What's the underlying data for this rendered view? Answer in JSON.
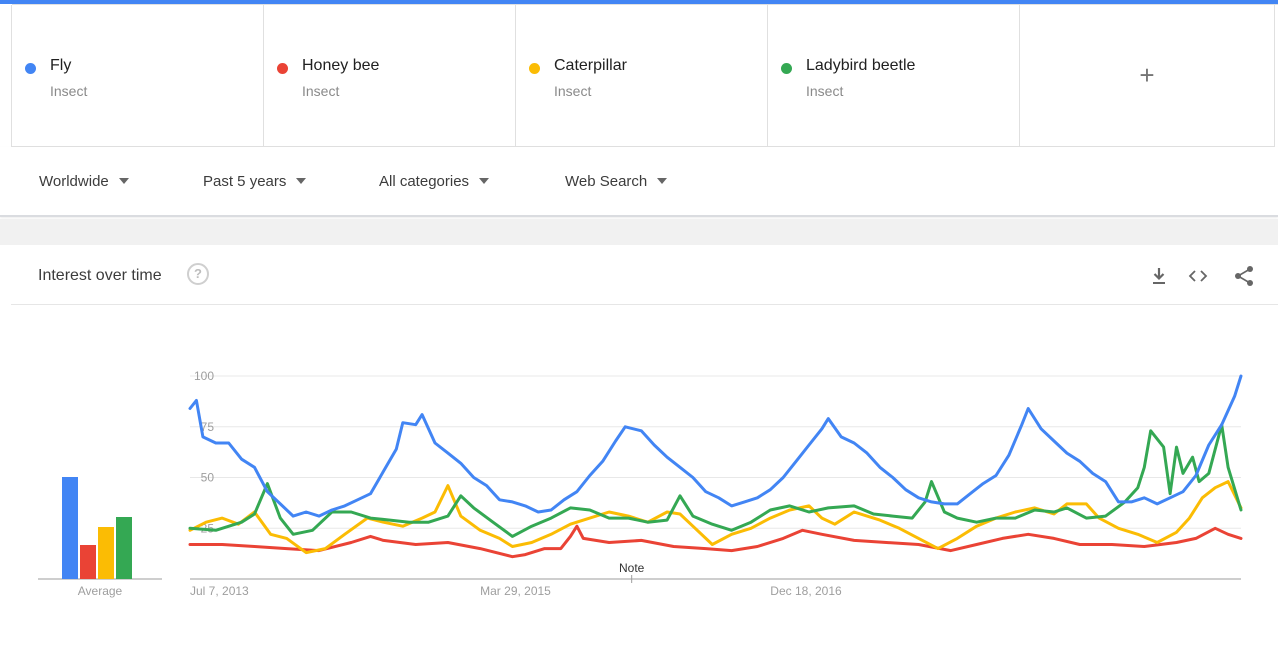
{
  "colors": {
    "accent": "#4285f4"
  },
  "terms": [
    {
      "name": "Fly",
      "type": "Insect",
      "color": "#4285f4"
    },
    {
      "name": "Honey bee",
      "type": "Insect",
      "color": "#ea4335"
    },
    {
      "name": "Caterpillar",
      "type": "Insect",
      "color": "#fbbc04"
    },
    {
      "name": "Ladybird beetle",
      "type": "Insect",
      "color": "#34a853"
    }
  ],
  "add_term_icon": "plus-icon",
  "filters": {
    "region": "Worldwide",
    "time": "Past 5 years",
    "category": "All categories",
    "search_type": "Web Search"
  },
  "panel": {
    "title": "Interest over time",
    "help_icon": "help-circle-icon",
    "help_glyph": "?",
    "tools": [
      "download-icon",
      "embed-code-icon",
      "share-icon"
    ]
  },
  "chart_data": {
    "type": "line",
    "yticks": [
      25,
      50,
      75,
      100
    ],
    "ylim": [
      0,
      100
    ],
    "x_tick_labels": [
      "Jul 7, 2013",
      "Mar 29, 2015",
      "Dec 18, 2016"
    ],
    "x_tick_index": [
      0,
      90,
      180
    ],
    "note": {
      "label": "Note",
      "x_index": 137
    },
    "average_label": "Average",
    "averages": [
      {
        "name": "Fly",
        "value": 51
      },
      {
        "name": "Honey bee",
        "value": 17
      },
      {
        "name": "Caterpillar",
        "value": 26
      },
      {
        "name": "Ladybird beetle",
        "value": 31
      }
    ],
    "series_keypoints": [
      {
        "name": "Fly",
        "points": [
          [
            0,
            84
          ],
          [
            2,
            88
          ],
          [
            4,
            70
          ],
          [
            8,
            67
          ],
          [
            12,
            67
          ],
          [
            16,
            59
          ],
          [
            20,
            55
          ],
          [
            24,
            43
          ],
          [
            28,
            37
          ],
          [
            32,
            31
          ],
          [
            36,
            33
          ],
          [
            40,
            31
          ],
          [
            44,
            34
          ],
          [
            48,
            36
          ],
          [
            52,
            39
          ],
          [
            56,
            42
          ],
          [
            60,
            53
          ],
          [
            64,
            64
          ],
          [
            66,
            77
          ],
          [
            70,
            76
          ],
          [
            72,
            81
          ],
          [
            76,
            67
          ],
          [
            80,
            62
          ],
          [
            84,
            57
          ],
          [
            88,
            50
          ],
          [
            92,
            46
          ],
          [
            96,
            39
          ],
          [
            100,
            38
          ],
          [
            104,
            36
          ],
          [
            108,
            33
          ],
          [
            112,
            34
          ],
          [
            116,
            39
          ],
          [
            120,
            43
          ],
          [
            124,
            51
          ],
          [
            128,
            58
          ],
          [
            132,
            68
          ],
          [
            135,
            75
          ],
          [
            140,
            73
          ],
          [
            144,
            66
          ],
          [
            148,
            60
          ],
          [
            152,
            55
          ],
          [
            156,
            50
          ],
          [
            160,
            43
          ],
          [
            164,
            40
          ],
          [
            168,
            36
          ],
          [
            172,
            38
          ],
          [
            176,
            40
          ],
          [
            180,
            44
          ],
          [
            184,
            50
          ],
          [
            188,
            58
          ],
          [
            192,
            66
          ],
          [
            196,
            74
          ],
          [
            198,
            79
          ],
          [
            202,
            70
          ],
          [
            206,
            67
          ],
          [
            210,
            62
          ],
          [
            214,
            55
          ],
          [
            218,
            50
          ],
          [
            222,
            44
          ],
          [
            226,
            40
          ],
          [
            230,
            38
          ],
          [
            234,
            37
          ],
          [
            238,
            37
          ],
          [
            242,
            42
          ],
          [
            246,
            47
          ],
          [
            250,
            51
          ],
          [
            254,
            61
          ],
          [
            258,
            76
          ],
          [
            260,
            84
          ],
          [
            264,
            74
          ],
          [
            268,
            68
          ],
          [
            272,
            62
          ],
          [
            276,
            58
          ],
          [
            280,
            52
          ],
          [
            284,
            48
          ],
          [
            288,
            38
          ],
          [
            292,
            38
          ],
          [
            296,
            40
          ],
          [
            300,
            37
          ],
          [
            304,
            40
          ],
          [
            308,
            43
          ],
          [
            312,
            51
          ],
          [
            316,
            66
          ],
          [
            320,
            76
          ],
          [
            324,
            90
          ],
          [
            326,
            100
          ]
        ]
      },
      {
        "name": "Honey bee",
        "points": [
          [
            0,
            17
          ],
          [
            10,
            17
          ],
          [
            20,
            16
          ],
          [
            30,
            15
          ],
          [
            40,
            14
          ],
          [
            50,
            18
          ],
          [
            56,
            21
          ],
          [
            60,
            19
          ],
          [
            70,
            17
          ],
          [
            80,
            18
          ],
          [
            90,
            15
          ],
          [
            100,
            11
          ],
          [
            104,
            12
          ],
          [
            110,
            15
          ],
          [
            115,
            15
          ],
          [
            118,
            21
          ],
          [
            120,
            26
          ],
          [
            122,
            20
          ],
          [
            130,
            18
          ],
          [
            140,
            19
          ],
          [
            150,
            16
          ],
          [
            160,
            15
          ],
          [
            168,
            14
          ],
          [
            176,
            16
          ],
          [
            184,
            20
          ],
          [
            190,
            24
          ],
          [
            196,
            22
          ],
          [
            206,
            19
          ],
          [
            216,
            18
          ],
          [
            226,
            17
          ],
          [
            236,
            14
          ],
          [
            244,
            17
          ],
          [
            252,
            20
          ],
          [
            260,
            22
          ],
          [
            268,
            20
          ],
          [
            276,
            17
          ],
          [
            286,
            17
          ],
          [
            296,
            16
          ],
          [
            306,
            18
          ],
          [
            312,
            20
          ],
          [
            318,
            25
          ],
          [
            322,
            22
          ],
          [
            326,
            20
          ]
        ]
      },
      {
        "name": "Caterpillar",
        "points": [
          [
            0,
            24
          ],
          [
            5,
            28
          ],
          [
            10,
            30
          ],
          [
            15,
            27
          ],
          [
            20,
            33
          ],
          [
            25,
            22
          ],
          [
            30,
            20
          ],
          [
            36,
            13
          ],
          [
            42,
            15
          ],
          [
            48,
            22
          ],
          [
            55,
            30
          ],
          [
            60,
            28
          ],
          [
            66,
            26
          ],
          [
            72,
            30
          ],
          [
            76,
            33
          ],
          [
            80,
            46
          ],
          [
            84,
            31
          ],
          [
            90,
            24
          ],
          [
            96,
            20
          ],
          [
            100,
            16
          ],
          [
            106,
            18
          ],
          [
            112,
            22
          ],
          [
            118,
            27
          ],
          [
            124,
            30
          ],
          [
            130,
            33
          ],
          [
            136,
            31
          ],
          [
            142,
            28
          ],
          [
            148,
            33
          ],
          [
            152,
            32
          ],
          [
            156,
            26
          ],
          [
            162,
            17
          ],
          [
            168,
            22
          ],
          [
            174,
            25
          ],
          [
            180,
            30
          ],
          [
            186,
            34
          ],
          [
            192,
            36
          ],
          [
            196,
            30
          ],
          [
            200,
            27
          ],
          [
            206,
            33
          ],
          [
            210,
            31
          ],
          [
            214,
            29
          ],
          [
            220,
            25
          ],
          [
            226,
            20
          ],
          [
            232,
            15
          ],
          [
            238,
            20
          ],
          [
            244,
            26
          ],
          [
            250,
            30
          ],
          [
            256,
            33
          ],
          [
            262,
            35
          ],
          [
            268,
            32
          ],
          [
            272,
            37
          ],
          [
            278,
            37
          ],
          [
            282,
            30
          ],
          [
            288,
            25
          ],
          [
            294,
            22
          ],
          [
            300,
            18
          ],
          [
            306,
            23
          ],
          [
            310,
            30
          ],
          [
            314,
            40
          ],
          [
            318,
            45
          ],
          [
            322,
            48
          ],
          [
            326,
            35
          ]
        ]
      },
      {
        "name": "Ladybird beetle",
        "points": [
          [
            0,
            25
          ],
          [
            8,
            24
          ],
          [
            16,
            28
          ],
          [
            20,
            32
          ],
          [
            24,
            47
          ],
          [
            28,
            30
          ],
          [
            32,
            22
          ],
          [
            38,
            24
          ],
          [
            44,
            33
          ],
          [
            50,
            33
          ],
          [
            56,
            30
          ],
          [
            62,
            29
          ],
          [
            68,
            28
          ],
          [
            74,
            28
          ],
          [
            80,
            31
          ],
          [
            84,
            41
          ],
          [
            88,
            35
          ],
          [
            94,
            28
          ],
          [
            100,
            21
          ],
          [
            106,
            26
          ],
          [
            112,
            30
          ],
          [
            118,
            35
          ],
          [
            124,
            34
          ],
          [
            130,
            30
          ],
          [
            136,
            30
          ],
          [
            142,
            28
          ],
          [
            148,
            29
          ],
          [
            152,
            41
          ],
          [
            156,
            31
          ],
          [
            162,
            27
          ],
          [
            168,
            24
          ],
          [
            174,
            28
          ],
          [
            180,
            34
          ],
          [
            186,
            36
          ],
          [
            192,
            33
          ],
          [
            198,
            35
          ],
          [
            206,
            36
          ],
          [
            212,
            32
          ],
          [
            218,
            31
          ],
          [
            224,
            30
          ],
          [
            228,
            38
          ],
          [
            230,
            48
          ],
          [
            234,
            33
          ],
          [
            238,
            30
          ],
          [
            244,
            28
          ],
          [
            250,
            30
          ],
          [
            256,
            30
          ],
          [
            262,
            34
          ],
          [
            268,
            33
          ],
          [
            272,
            35
          ],
          [
            278,
            30
          ],
          [
            284,
            31
          ],
          [
            290,
            38
          ],
          [
            294,
            45
          ],
          [
            296,
            55
          ],
          [
            298,
            73
          ],
          [
            302,
            65
          ],
          [
            304,
            42
          ],
          [
            306,
            65
          ],
          [
            308,
            52
          ],
          [
            311,
            60
          ],
          [
            313,
            48
          ],
          [
            316,
            52
          ],
          [
            320,
            76
          ],
          [
            322,
            55
          ],
          [
            326,
            34
          ]
        ]
      }
    ]
  }
}
